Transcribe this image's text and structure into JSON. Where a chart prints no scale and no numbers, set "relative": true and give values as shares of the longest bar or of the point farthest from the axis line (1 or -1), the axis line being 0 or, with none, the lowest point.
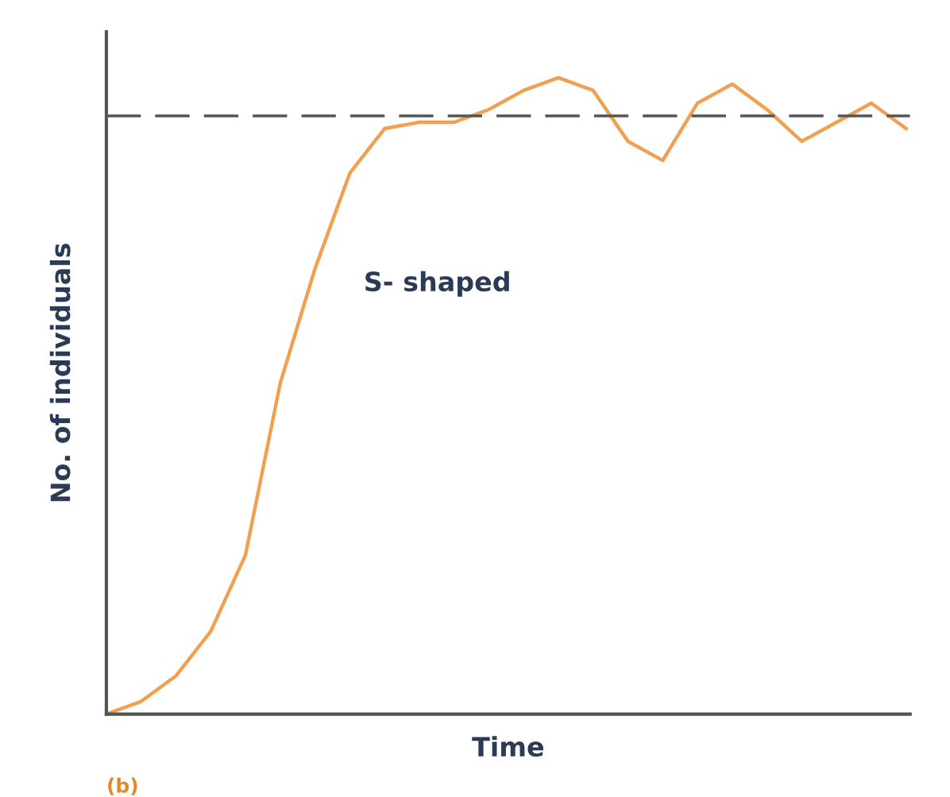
{
  "chart_data": {
    "type": "line",
    "relative": true,
    "xlabel": "Time",
    "ylabel": "No. of individuals",
    "annotations": [
      "S- shaped",
      "(b)"
    ],
    "categories": [
      null,
      null,
      null,
      null,
      null,
      null,
      null,
      null,
      null,
      null,
      null,
      null,
      null,
      null,
      null,
      null,
      null,
      null,
      null,
      null,
      null,
      null,
      null,
      null
    ],
    "series": [
      {
        "color": "#f0a050",
        "values": [
          0.0,
          0.02,
          0.06,
          0.13,
          0.25,
          0.52,
          0.7,
          0.85,
          0.92,
          0.93,
          0.93,
          0.95,
          0.98,
          1.0,
          0.98,
          0.9,
          0.87,
          0.96,
          0.99,
          0.95,
          0.9,
          0.93,
          0.96,
          0.92
        ]
      }
    ],
    "ref_lines": [
      {
        "axis": "y",
        "value": 0.94,
        "color": "#555555",
        "line_style": "dashed"
      }
    ]
  }
}
